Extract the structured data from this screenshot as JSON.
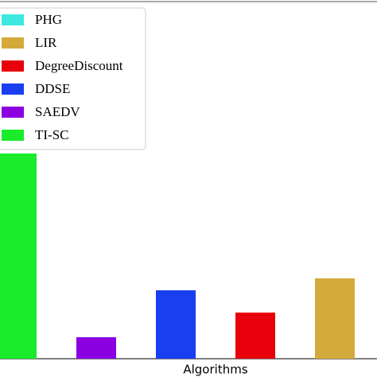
{
  "chart_data": {
    "type": "bar",
    "xlabel": "Algorithms",
    "ylim": [
      0,
      449
    ],
    "series": [
      {
        "name": "PHG",
        "color": "#3de8e0",
        "values": [
          null
        ]
      },
      {
        "name": "LIR",
        "color": "#d4aa3a",
        "values": [
          101
        ]
      },
      {
        "name": "DegreeDiscount",
        "color": "#e8000b",
        "values": [
          58
        ]
      },
      {
        "name": "DDSE",
        "color": "#1a3ff0",
        "values": [
          86
        ]
      },
      {
        "name": "SAEDV",
        "color": "#8b00e0",
        "values": [
          27
        ]
      },
      {
        "name": "TI-SC",
        "color": "#1aeb2a",
        "values": [
          258
        ]
      }
    ]
  }
}
